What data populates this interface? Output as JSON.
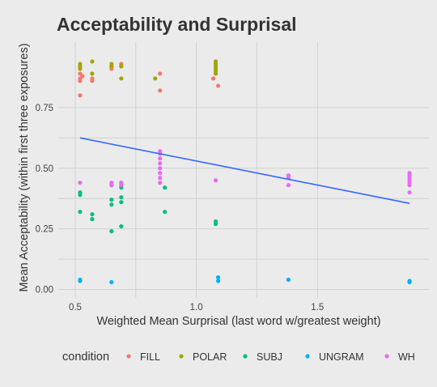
{
  "chart_data": {
    "type": "scatter",
    "title": "Acceptability and Surprisal",
    "xlabel": "Weighted Mean Surprisal (last word w/greatest weight)",
    "ylabel": "Mean Acceptability (within first three exposures)",
    "xlim": [
      0.43,
      1.96
    ],
    "ylim": [
      -0.035,
      1.02
    ],
    "x_ticks": [
      0.5,
      1.0,
      1.5
    ],
    "x_tick_labels": [
      "0.5",
      "1.0",
      "1.5"
    ],
    "y_ticks": [
      0.0,
      0.25,
      0.5,
      0.75
    ],
    "y_tick_labels": [
      "0.00",
      "0.25",
      "0.50",
      "0.75"
    ],
    "grid": true,
    "legend": {
      "title": "condition",
      "position": "bottom"
    },
    "series": [
      {
        "name": "FILL",
        "color": "#F8766D",
        "points": [
          [
            0.52,
            0.87
          ],
          [
            0.52,
            0.89
          ],
          [
            0.52,
            0.86
          ],
          [
            0.52,
            0.8
          ],
          [
            0.53,
            0.88
          ],
          [
            0.57,
            0.87
          ],
          [
            0.57,
            0.86
          ],
          [
            0.65,
            0.92
          ],
          [
            0.65,
            0.91
          ],
          [
            0.69,
            0.93
          ],
          [
            0.69,
            0.92
          ],
          [
            0.85,
            0.89
          ],
          [
            0.85,
            0.82
          ],
          [
            1.07,
            0.87
          ],
          [
            1.09,
            0.84
          ]
        ]
      },
      {
        "name": "POLAR",
        "color": "#A3A500",
        "points": [
          [
            0.52,
            0.93
          ],
          [
            0.52,
            0.92
          ],
          [
            0.52,
            0.91
          ],
          [
            0.57,
            0.94
          ],
          [
            0.57,
            0.89
          ],
          [
            0.65,
            0.93
          ],
          [
            0.65,
            0.92
          ],
          [
            0.69,
            0.92
          ],
          [
            0.69,
            0.87
          ],
          [
            0.83,
            0.87
          ],
          [
            1.08,
            0.94
          ],
          [
            1.08,
            0.93
          ],
          [
            1.08,
            0.92
          ],
          [
            1.08,
            0.91
          ],
          [
            1.08,
            0.9
          ],
          [
            1.08,
            0.89
          ]
        ]
      },
      {
        "name": "SUBJ",
        "color": "#00BF7D",
        "points": [
          [
            0.52,
            0.4
          ],
          [
            0.52,
            0.39
          ],
          [
            0.52,
            0.32
          ],
          [
            0.57,
            0.31
          ],
          [
            0.57,
            0.29
          ],
          [
            0.65,
            0.43
          ],
          [
            0.65,
            0.37
          ],
          [
            0.65,
            0.35
          ],
          [
            0.65,
            0.24
          ],
          [
            0.69,
            0.44
          ],
          [
            0.69,
            0.42
          ],
          [
            0.69,
            0.38
          ],
          [
            0.69,
            0.36
          ],
          [
            0.69,
            0.26
          ],
          [
            0.87,
            0.42
          ],
          [
            0.87,
            0.32
          ],
          [
            1.08,
            0.28
          ],
          [
            1.08,
            0.27
          ]
        ]
      },
      {
        "name": "UNGRAM",
        "color": "#00B0F6",
        "points": [
          [
            0.52,
            0.04
          ],
          [
            0.52,
            0.035
          ],
          [
            0.65,
            0.03
          ],
          [
            1.09,
            0.05
          ],
          [
            1.09,
            0.035
          ],
          [
            1.38,
            0.04
          ],
          [
            1.88,
            0.035
          ],
          [
            1.88,
            0.03
          ]
        ]
      },
      {
        "name": "WH",
        "color": "#E76BF3",
        "points": [
          [
            0.52,
            0.44
          ],
          [
            0.65,
            0.44
          ],
          [
            0.65,
            0.43
          ],
          [
            0.69,
            0.44
          ],
          [
            0.69,
            0.43
          ],
          [
            0.85,
            0.57
          ],
          [
            0.85,
            0.56
          ],
          [
            0.85,
            0.54
          ],
          [
            0.85,
            0.52
          ],
          [
            0.85,
            0.5
          ],
          [
            0.85,
            0.48
          ],
          [
            0.85,
            0.46
          ],
          [
            0.85,
            0.44
          ],
          [
            1.08,
            0.45
          ],
          [
            1.38,
            0.47
          ],
          [
            1.38,
            0.46
          ],
          [
            1.38,
            0.43
          ],
          [
            1.88,
            0.48
          ],
          [
            1.88,
            0.47
          ],
          [
            1.88,
            0.46
          ],
          [
            1.88,
            0.45
          ],
          [
            1.88,
            0.44
          ],
          [
            1.88,
            0.43
          ],
          [
            1.88,
            0.4
          ]
        ]
      }
    ],
    "trend_line": {
      "method": "linear",
      "color": "#3366FF",
      "start": [
        0.52,
        0.625
      ],
      "end": [
        1.88,
        0.355
      ]
    }
  }
}
